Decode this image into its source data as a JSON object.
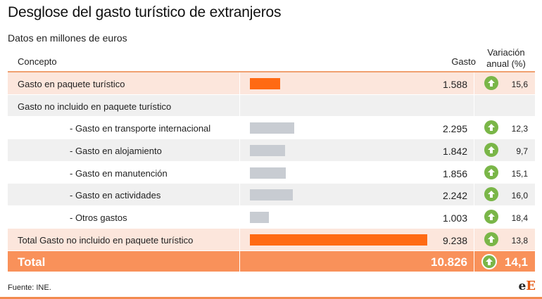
{
  "title": "Desglose del gasto turístico de extranjeros",
  "subtitle": "Datos en millones de euros",
  "header": {
    "concepto": "Concepto",
    "gasto": "Gasto",
    "variacion": "Variación anual (%)"
  },
  "rows": [
    {
      "concepto": "Gasto en paquete turístico",
      "gasto": "1.588",
      "variacion": "15,6"
    },
    {
      "concepto": "Gasto no incluido en paquete turístico",
      "gasto": "",
      "variacion": ""
    },
    {
      "concepto": "- Gasto en transporte internacional",
      "gasto": "2.295",
      "variacion": "12,3"
    },
    {
      "concepto": "- Gasto en alojamiento",
      "gasto": "1.842",
      "variacion": "9,7"
    },
    {
      "concepto": "- Gasto en manutención",
      "gasto": "1.856",
      "variacion": "15,1"
    },
    {
      "concepto": "- Gasto en actividades",
      "gasto": "2.242",
      "variacion": "16,0"
    },
    {
      "concepto": "- Otros gastos",
      "gasto": "1.003",
      "variacion": "18,4"
    },
    {
      "concepto": "Total Gasto no incluido en paquete turístico",
      "gasto": "9.238",
      "variacion": "13,8"
    }
  ],
  "total": {
    "concepto": "Total",
    "gasto": "10.826",
    "variacion": "14,1"
  },
  "source": "Fuente: INE.",
  "logo": {
    "prefix": "e",
    "suffix": "E"
  },
  "colors": {
    "accent_orange": "#ff6a13",
    "bar_grey": "#c8ccd2",
    "up_arrow_green": "#7ab648",
    "total_bg": "#f9915a",
    "highlight_bg": "#fce6dc"
  },
  "icons": {
    "up": "arrow-up-circle-icon"
  },
  "chart_data": {
    "type": "table",
    "title": "Desglose del gasto turístico de extranjeros",
    "subtitle": "Datos en millones de euros",
    "columns": [
      "Concepto",
      "Gasto",
      "Variación anual (%)"
    ],
    "categories": [
      "Gasto en paquete turístico",
      "Gasto no incluido en paquete turístico",
      "- Gasto en transporte internacional",
      "- Gasto en alojamiento",
      "- Gasto en manutención",
      "- Gasto en actividades",
      "- Otros gastos",
      "Total Gasto no incluido en paquete turístico",
      "Total"
    ],
    "series": [
      {
        "name": "Gasto",
        "values": [
          1588,
          null,
          2295,
          1842,
          1856,
          2242,
          1003,
          9238,
          10826
        ]
      },
      {
        "name": "Variación anual (%)",
        "values": [
          15.6,
          null,
          12.3,
          9.7,
          15.1,
          16.0,
          18.4,
          13.8,
          14.1
        ]
      }
    ],
    "bar_max": 9238
  }
}
